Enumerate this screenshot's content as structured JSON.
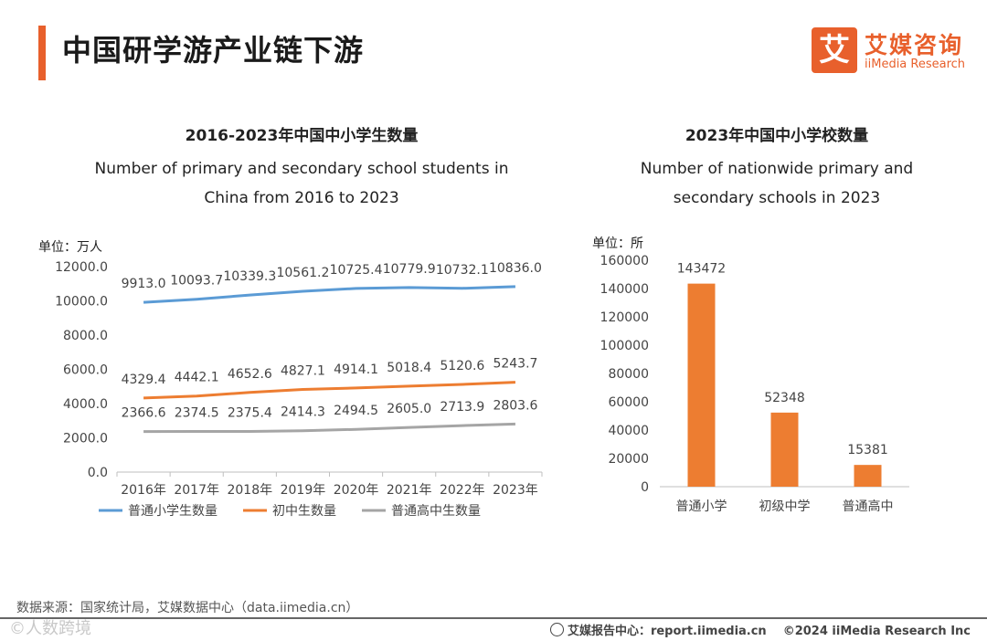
{
  "header": {
    "title": "中国研学游产业链下游",
    "logo_mark": "艾",
    "logo_cn": "艾媒咨询",
    "logo_en": "iiMedia Research"
  },
  "colors": {
    "accent": "#e8602c",
    "blue": "#5b9bd5",
    "orange": "#ed7d31",
    "gray": "#a5a5a5"
  },
  "chart_data": [
    {
      "type": "line",
      "title": "2016-2023年中国中小学生数量",
      "subtitle_line1": "Number of primary and secondary school students in",
      "subtitle_line2": "China from 2016 to 2023",
      "unit": "单位：万人",
      "categories": [
        "2016年",
        "2017年",
        "2018年",
        "2019年",
        "2020年",
        "2021年",
        "2022年",
        "2023年"
      ],
      "series": [
        {
          "name": "普通小学生数量",
          "color": "#5b9bd5",
          "values": [
            9913.0,
            10093.7,
            10339.3,
            10561.2,
            10725.4,
            10779.9,
            10732.1,
            10836.0
          ],
          "labels": [
            "9913.0",
            "10093.7",
            "10339.3",
            "10561.2",
            "10725.4",
            "10779.9",
            "10732.1",
            "10836.0"
          ]
        },
        {
          "name": "初中生数量",
          "color": "#ed7d31",
          "values": [
            4329.4,
            4442.1,
            4652.6,
            4827.1,
            4914.1,
            5018.4,
            5120.6,
            5243.7
          ],
          "labels": [
            "4329.4",
            "4442.1",
            "4652.6",
            "4827.1",
            "4914.1",
            "5018.4",
            "5120.6",
            "5243.7"
          ]
        },
        {
          "name": "普通高中生数量",
          "color": "#a5a5a5",
          "values": [
            2366.6,
            2374.5,
            2375.4,
            2414.3,
            2494.5,
            2605.0,
            2713.9,
            2803.6
          ],
          "labels": [
            "2366.6",
            "2374.5",
            "2375.4",
            "2414.3",
            "2494.5",
            "2605.0",
            "2713.9",
            "2803.6"
          ]
        }
      ],
      "ylim": [
        0,
        12000
      ],
      "yticks": [
        "0.0",
        "2000.0",
        "4000.0",
        "6000.0",
        "8000.0",
        "10000.0",
        "12000.0"
      ],
      "legend": "bottom"
    },
    {
      "type": "bar",
      "title": "2023年中国中小学校数量",
      "subtitle_line1": "Number of nationwide primary and",
      "subtitle_line2": "secondary schools  in 2023",
      "unit": "单位：所",
      "categories": [
        "普通小学",
        "初级中学",
        "普通高中"
      ],
      "values": [
        143472,
        52348,
        15381
      ],
      "labels": [
        "143472",
        "52348",
        "15381"
      ],
      "ylim": [
        0,
        160000
      ],
      "yticks": [
        "0",
        "20000",
        "40000",
        "60000",
        "80000",
        "100000",
        "120000",
        "140000",
        "160000"
      ],
      "color": "#ed7d31"
    }
  ],
  "footer": {
    "source": "数据来源：国家统计局，艾媒数据中心（data.iimedia.cn）",
    "watermark": "©人数跨境",
    "report": "艾媒报告中心：report.iimedia.cn",
    "copyright": "©2024  iiMedia Research  Inc"
  }
}
